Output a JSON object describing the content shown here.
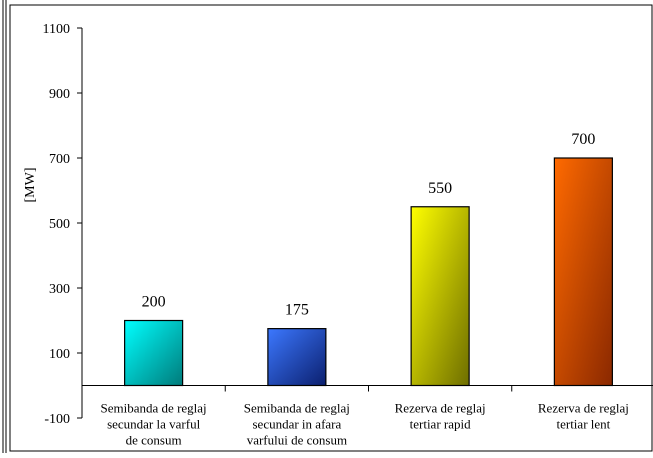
{
  "chart_data": {
    "type": "bar",
    "title": "",
    "ylabel": "[MW]",
    "xlabel": "",
    "ylim": [
      -100,
      1100
    ],
    "yticks": [
      -100,
      100,
      300,
      500,
      700,
      900,
      1100
    ],
    "grid": false,
    "legend": "none",
    "categories": [
      [
        "Semibanda de reglaj",
        "secundar la varful",
        "de consum"
      ],
      [
        "Semibanda de reglaj",
        "secundar in afara",
        "varfului de consum"
      ],
      [
        "Rezerva de reglaj",
        "tertiar rapid"
      ],
      [
        "Rezerva de reglaj",
        "tertiar lent"
      ]
    ],
    "values": [
      200,
      175,
      550,
      700
    ],
    "data_labels": [
      "200",
      "175",
      "550",
      "700"
    ],
    "colors": [
      [
        "#00ffff",
        "#007a7a"
      ],
      [
        "#3c78ff",
        "#0b1f6e"
      ],
      [
        "#ffff00",
        "#6e6e00"
      ],
      [
        "#ff6a00",
        "#8a2800"
      ]
    ]
  }
}
